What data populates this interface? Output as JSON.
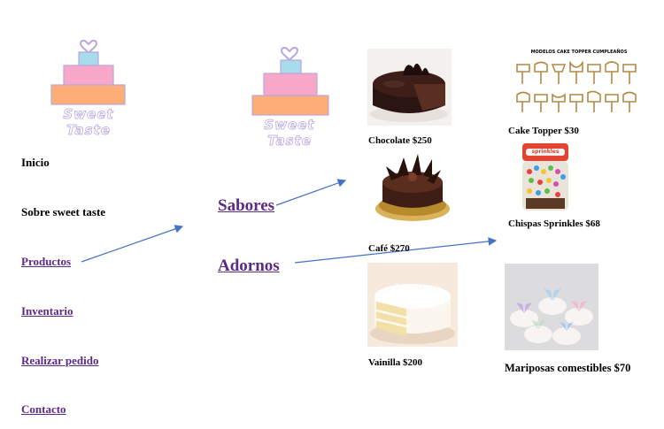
{
  "brand": {
    "name": "Sweet Taste"
  },
  "nav": {
    "items": [
      {
        "label": "Inicio",
        "link": false
      },
      {
        "label": "Sobre sweet taste",
        "link": false
      },
      {
        "label": "Productos",
        "link": true
      },
      {
        "label": "Inventario",
        "link": true
      },
      {
        "label": "Realizar pedido",
        "link": true
      },
      {
        "label": "Contacto",
        "link": true
      }
    ]
  },
  "categories": {
    "sabores": "Sabores",
    "adornos": "Adornos"
  },
  "sabores": [
    {
      "caption": "Chocolate $250"
    },
    {
      "caption": "Café $270"
    },
    {
      "caption": "Vainilla $200"
    }
  ],
  "adornos": [
    {
      "caption": "Cake Topper $30",
      "image_title": "MODELOS CAKE TOPPER CUMPLEAÑOS"
    },
    {
      "caption": "Chispas Sprinkles $68",
      "jar_label": "sprinkles"
    },
    {
      "caption": "Mariposas comestibles $70"
    }
  ],
  "colors": {
    "link": "#5b2a86",
    "arrow": "#4472c4",
    "cake_top": "#a8dcea",
    "cake_middle": "#f7a8c8",
    "cake_bottom": "#ffad76",
    "logo_outline": "#b9a6dd"
  }
}
